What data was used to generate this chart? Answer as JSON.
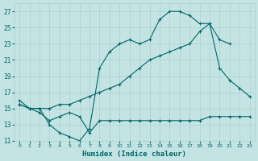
{
  "xlabel": "Humidex (Indice chaleur)",
  "xlim": [
    -0.5,
    23.5
  ],
  "ylim": [
    11,
    28
  ],
  "yticks": [
    11,
    13,
    15,
    17,
    19,
    21,
    23,
    25,
    27
  ],
  "xticks": [
    0,
    1,
    2,
    3,
    4,
    5,
    6,
    7,
    8,
    9,
    10,
    11,
    12,
    13,
    14,
    15,
    16,
    17,
    18,
    19,
    20,
    21,
    22,
    23
  ],
  "bg_color": "#c4e4e4",
  "line_color": "#006666",
  "grid_color": "#aacfcf",
  "line1_x": [
    0,
    1,
    2,
    3,
    4,
    5,
    6,
    7,
    8,
    9,
    10,
    11,
    12,
    13,
    14,
    15,
    16,
    17,
    18,
    19,
    20,
    21
  ],
  "line1_y": [
    16,
    15,
    15,
    13,
    12,
    11.5,
    11,
    12.5,
    20,
    22,
    23,
    23.5,
    23,
    23.5,
    26,
    27,
    27,
    26.5,
    25.5,
    25.5,
    23.5,
    23
  ],
  "line2_x": [
    0,
    1,
    2,
    3,
    4,
    5,
    6,
    7,
    8,
    9,
    10,
    11,
    12,
    13,
    14,
    15,
    16,
    17,
    18,
    19,
    20,
    21,
    22,
    23
  ],
  "line2_y": [
    15.5,
    15,
    15,
    15,
    15.5,
    15.5,
    16,
    16.5,
    17,
    17.5,
    18,
    19,
    20,
    21,
    21.5,
    22,
    22.5,
    23,
    24.5,
    25.5,
    20,
    18.5,
    17.5,
    16.5
  ],
  "line3_x": [
    0,
    2,
    3,
    4,
    5,
    6,
    7,
    8,
    9,
    10,
    11,
    12,
    13,
    14,
    15,
    16,
    17,
    18,
    19,
    20,
    21,
    22,
    23
  ],
  "line3_y": [
    15.5,
    14.5,
    13.5,
    14,
    14.5,
    14,
    12,
    13.5,
    13.5,
    13.5,
    13.5,
    13.5,
    13.5,
    13.5,
    13.5,
    13.5,
    13.5,
    13.5,
    14,
    14,
    14,
    14,
    14
  ]
}
